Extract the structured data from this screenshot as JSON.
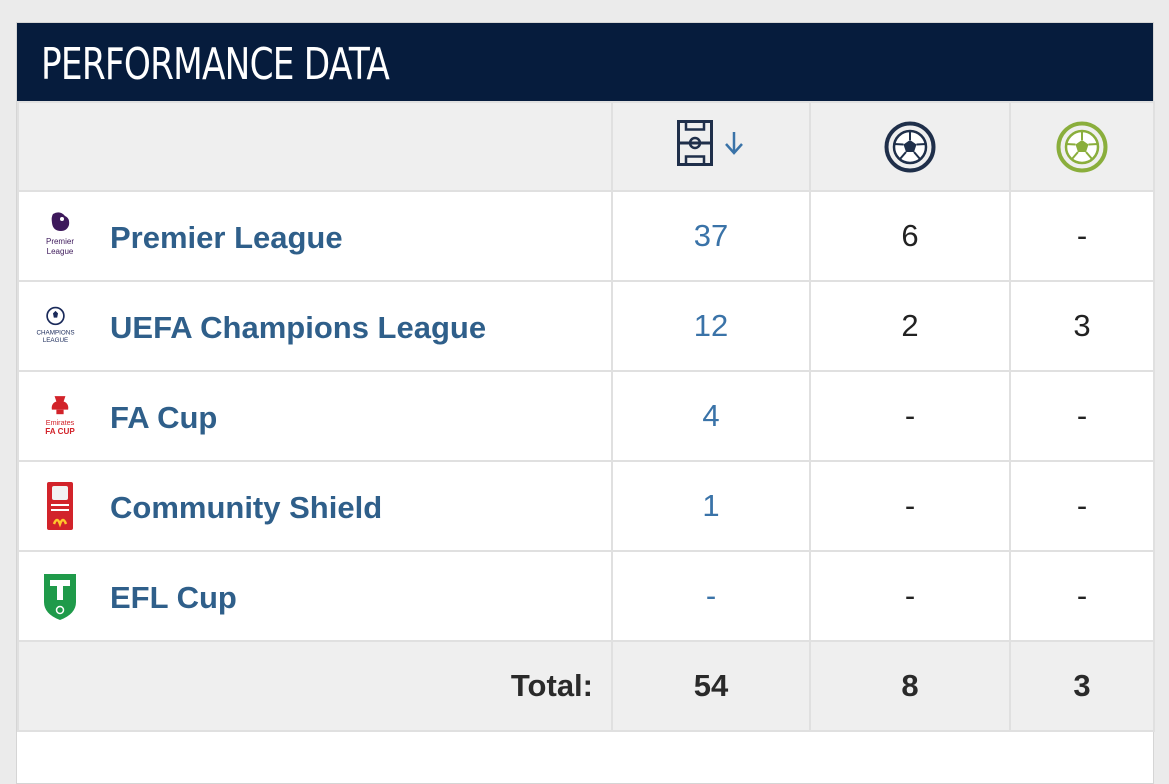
{
  "header": {
    "title": "PERFORMANCE DATA"
  },
  "columns": {
    "appearances_icon": "pitch-icon",
    "sort_icon": "sort-down-arrow-icon",
    "goals_icon": "football-navy-icon",
    "assists_icon": "football-green-icon"
  },
  "colors": {
    "header_bg": "#061c3d",
    "competition_link": "#2f5f8a",
    "appearances": "#3a73a8",
    "assists_icon": "#8aae3c"
  },
  "rows": [
    {
      "name": "Premier League",
      "logo": "premier-league-logo",
      "logo_text": "Premier League",
      "appearances": "37",
      "goals": "6",
      "assists": "-"
    },
    {
      "name": "UEFA Champions League",
      "logo": "champions-league-logo",
      "logo_text": "CHAMPIONS LEAGUE",
      "appearances": "12",
      "goals": "2",
      "assists": "3"
    },
    {
      "name": "FA Cup",
      "logo": "fa-cup-logo",
      "logo_text": "Emirates FA CUP",
      "appearances": "4",
      "goals": "-",
      "assists": "-"
    },
    {
      "name": "Community Shield",
      "logo": "community-shield-logo",
      "logo_text": "",
      "appearances": "1",
      "goals": "-",
      "assists": "-"
    },
    {
      "name": "EFL Cup",
      "logo": "efl-cup-logo",
      "logo_text": "",
      "appearances": "-",
      "goals": "-",
      "assists": "-"
    }
  ],
  "totals": {
    "label": "Total:",
    "appearances": "54",
    "goals": "8",
    "assists": "3"
  }
}
